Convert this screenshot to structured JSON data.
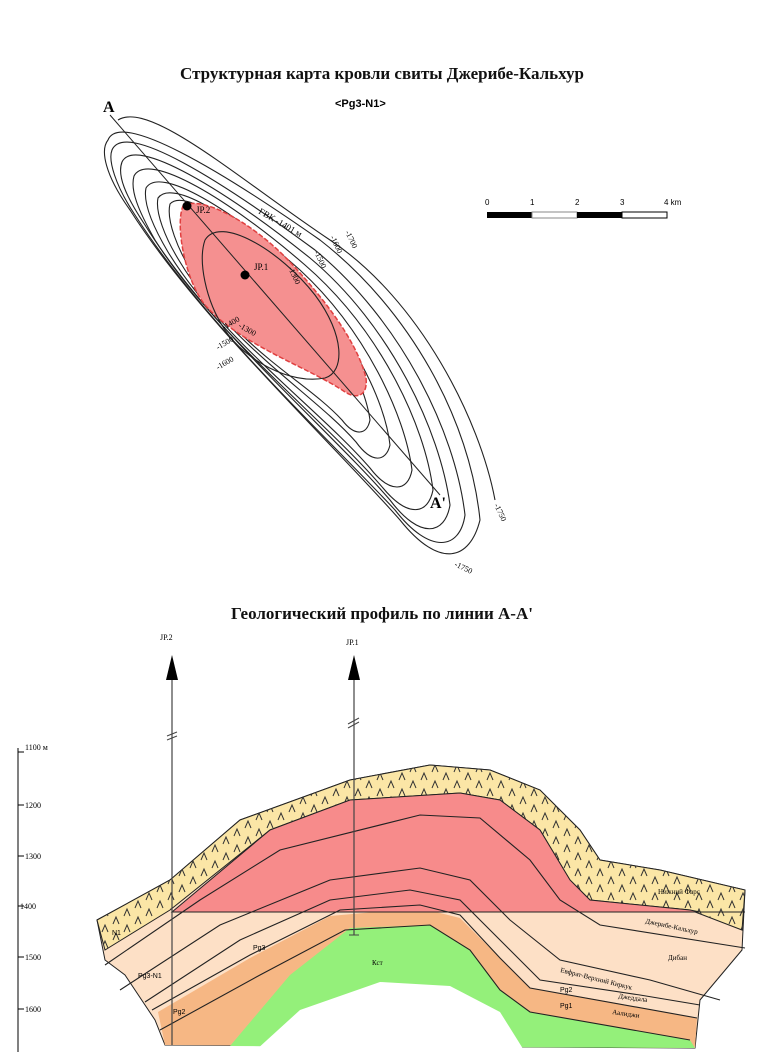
{
  "map": {
    "title": "Структурная карта кровли свиты Джерибе-Кальхур",
    "subtitle": "<Pg3-N1>",
    "point_a": "A",
    "point_a_prime": "A'",
    "wells": [
      "JP.2",
      "JP.1"
    ],
    "contact_label": "ГВК -1401 м",
    "contour_labels": [
      "-1300",
      "-1300",
      "-1400",
      "-1500",
      "-1600",
      "-1500",
      "-1600",
      "-1700",
      "-1750",
      "-1750"
    ],
    "scale_bar": {
      "ticks": [
        "0",
        "1",
        "2",
        "3",
        "4 km"
      ]
    },
    "colors": {
      "gas": "#f59090",
      "gas_edge": "#e04040"
    }
  },
  "profile": {
    "title": "Геологический профиль по линии  А-А'",
    "wells": [
      "JP.2",
      "JP.1"
    ],
    "depth_ticks": [
      "1100 м",
      "1200",
      "1300",
      "1400",
      "1500",
      "1600"
    ],
    "formations": [
      "Нижний Фарс",
      "Джерибе-Кальхур",
      "Дибан",
      "Евфрат-Верхний Киркук",
      "Джеддала",
      "Аалиджи"
    ],
    "age_labels": {
      "n1": "N1",
      "pg3n1": "Pg3-N1",
      "pg3": "Pg3",
      "pg2": "Pg2",
      "pg1": "Pg1",
      "pg2b": "Pg2",
      "km": "Кст"
    },
    "colors": {
      "fars": "#fbe6a6",
      "gas": "#f78b8b",
      "peach": "#fde0c6",
      "orange": "#f6b784",
      "cretaceous": "#94f07a"
    }
  }
}
